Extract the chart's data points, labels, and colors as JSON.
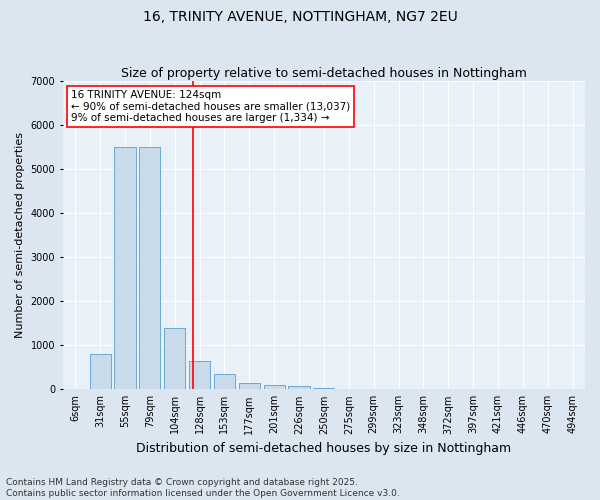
{
  "title": "16, TRINITY AVENUE, NOTTINGHAM, NG7 2EU",
  "subtitle": "Size of property relative to semi-detached houses in Nottingham",
  "xlabel": "Distribution of semi-detached houses by size in Nottingham",
  "ylabel": "Number of semi-detached properties",
  "categories": [
    "6sqm",
    "31sqm",
    "55sqm",
    "79sqm",
    "104sqm",
    "128sqm",
    "153sqm",
    "177sqm",
    "201sqm",
    "226sqm",
    "250sqm",
    "275sqm",
    "299sqm",
    "323sqm",
    "348sqm",
    "372sqm",
    "397sqm",
    "421sqm",
    "446sqm",
    "470sqm",
    "494sqm"
  ],
  "values": [
    5,
    800,
    5500,
    5500,
    1400,
    650,
    350,
    150,
    100,
    70,
    30,
    10,
    5,
    2,
    1,
    1,
    0,
    0,
    0,
    0,
    0
  ],
  "bar_color": "#c9daea",
  "bar_edge_color": "#6aaad4",
  "annotation_line1": "16 TRINITY AVENUE: 124sqm",
  "annotation_line2": "← 90% of semi-detached houses are smaller (13,037)",
  "annotation_line3": "9% of semi-detached houses are larger (1,334) →",
  "footer_line1": "Contains HM Land Registry data © Crown copyright and database right 2025.",
  "footer_line2": "Contains public sector information licensed under the Open Government Licence v3.0.",
  "ylim": [
    0,
    7000
  ],
  "background_color": "#dce6f0",
  "plot_bg_color": "#e8f0f8",
  "grid_color": "#ffffff",
  "title_fontsize": 10,
  "subtitle_fontsize": 9,
  "xlabel_fontsize": 9,
  "ylabel_fontsize": 8,
  "tick_fontsize": 7,
  "annotation_fontsize": 7.5,
  "footer_fontsize": 6.5,
  "property_line_x": 4.75
}
